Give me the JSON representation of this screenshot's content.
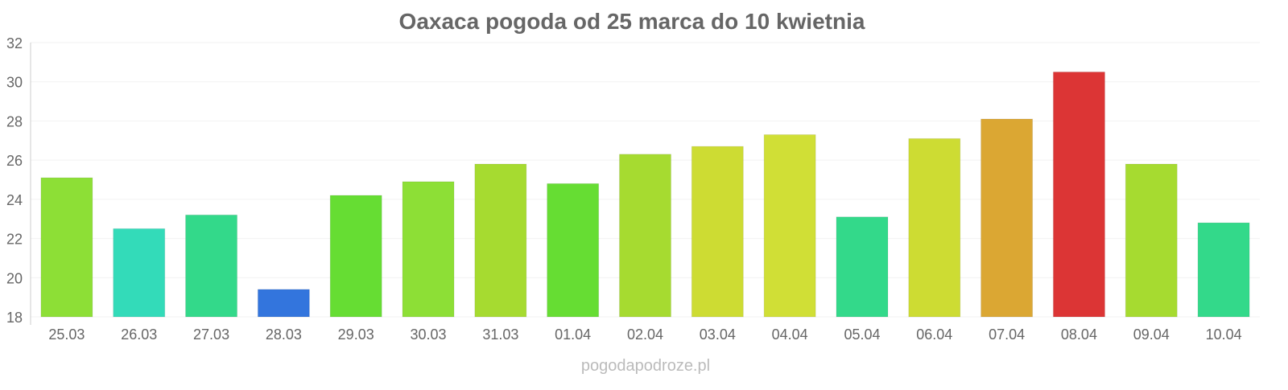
{
  "chart_data": {
    "type": "bar",
    "title": "Oaxaca pogoda od 25 marca do 10 kwietnia",
    "xlabel": "",
    "ylabel": "",
    "ylim": [
      18,
      32
    ],
    "yticks": [
      18,
      20,
      22,
      24,
      26,
      28,
      30,
      32
    ],
    "grid": true,
    "categories": [
      "25.03",
      "26.03",
      "27.03",
      "28.03",
      "29.03",
      "30.03",
      "31.03",
      "01.04",
      "02.04",
      "03.04",
      "04.04",
      "05.04",
      "06.04",
      "07.04",
      "08.04",
      "09.04",
      "10.04"
    ],
    "values": [
      25.1,
      22.5,
      23.2,
      19.4,
      24.2,
      24.9,
      25.8,
      24.8,
      26.3,
      26.7,
      27.3,
      23.1,
      27.1,
      28.1,
      30.5,
      25.8,
      22.8
    ],
    "colors": [
      "#8ddf36",
      "#33dbb9",
      "#33d98a",
      "#3375dd",
      "#66dd33",
      "#8ddf36",
      "#a6db30",
      "#66dd33",
      "#a6db30",
      "#cddc33",
      "#d0df36",
      "#33d98a",
      "#cddc33",
      "#dba733",
      "#dc3535",
      "#a6db30",
      "#33d98a"
    ]
  },
  "watermark": "pogodapodroze.pl"
}
